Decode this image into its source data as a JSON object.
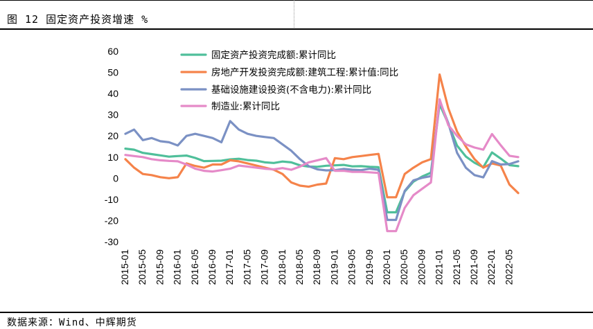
{
  "header": {
    "title": "图 12 固定资产投资增速 %"
  },
  "footer": {
    "source": "数据来源：Wind、中辉期货"
  },
  "chart_data": {
    "type": "line",
    "title": "图 12 固定资产投资增速 %",
    "xlabel": "",
    "ylabel": "",
    "ylim": [
      -30,
      60
    ],
    "yticks": [
      -30,
      -20,
      -10,
      0,
      10,
      20,
      30,
      40,
      50,
      60
    ],
    "grid": false,
    "legend_position": "top-left",
    "x": [
      "2015-01",
      "2015-03",
      "2015-05",
      "2015-07",
      "2015-09",
      "2015-11",
      "2016-01",
      "2016-03",
      "2016-05",
      "2016-07",
      "2016-09",
      "2016-11",
      "2017-01",
      "2017-03",
      "2017-05",
      "2017-07",
      "2017-09",
      "2017-11",
      "2018-01",
      "2018-03",
      "2018-05",
      "2018-07",
      "2018-09",
      "2018-11",
      "2019-01",
      "2019-03",
      "2019-05",
      "2019-07",
      "2019-09",
      "2019-11",
      "2020-01",
      "2020-03",
      "2020-05",
      "2020-07",
      "2020-09",
      "2020-11",
      "2021-01",
      "2021-03",
      "2021-05",
      "2021-07",
      "2021-09",
      "2021-11",
      "2022-01",
      "2022-03",
      "2022-05",
      "2022-07"
    ],
    "x_tick_labels": [
      "2015-01",
      "2015-05",
      "2015-09",
      "2016-01",
      "2016-05",
      "2016-09",
      "2017-01",
      "2017-05",
      "2017-09",
      "2018-01",
      "2018-05",
      "2018-09",
      "2019-01",
      "2019-05",
      "2019-09",
      "2020-01",
      "2020-05",
      "2020-09",
      "2021-01",
      "2021-05",
      "2021-09",
      "2022-01",
      "2022-05"
    ],
    "series": [
      {
        "name": "固定资产投资完成额:累计同比",
        "color": "#4fbf9a",
        "values": [
          14.0,
          13.5,
          12.0,
          11.4,
          10.8,
          10.2,
          10.5,
          10.7,
          9.6,
          8.1,
          8.2,
          8.3,
          8.9,
          9.2,
          8.6,
          8.3,
          7.5,
          7.2,
          7.9,
          7.5,
          6.1,
          5.5,
          5.4,
          5.9,
          6.1,
          6.3,
          5.6,
          5.7,
          5.4,
          5.2,
          -16.1,
          -16.1,
          -6.3,
          -1.6,
          0.8,
          2.6,
          35.0,
          25.6,
          15.4,
          10.3,
          7.3,
          5.2,
          12.2,
          9.3,
          6.2,
          5.7
        ]
      },
      {
        "name": "房地产开发投资完成额:建筑工程:累计值:同比",
        "color": "#f5834a",
        "values": [
          9.0,
          5.0,
          2.0,
          1.5,
          0.5,
          0.0,
          0.5,
          7.0,
          5.8,
          5.0,
          6.5,
          6.5,
          8.5,
          8.0,
          7.0,
          6.0,
          5.0,
          4.0,
          2.0,
          -2.0,
          -3.5,
          -4.0,
          -3.0,
          -2.5,
          9.5,
          9.0,
          10.0,
          10.5,
          11.0,
          11.5,
          -9.0,
          -9.0,
          2.0,
          5.0,
          7.5,
          9.0,
          49.0,
          33.0,
          22.0,
          15.0,
          9.0,
          5.0,
          7.0,
          6.0,
          -3.0,
          -7.0
        ]
      },
      {
        "name": "基础设施建设投资(不含电力):累计同比",
        "color": "#7b91c4",
        "values": [
          21.0,
          23.0,
          18.0,
          19.0,
          17.5,
          17.0,
          15.5,
          20.0,
          21.0,
          20.0,
          19.0,
          17.0,
          27.0,
          23.0,
          21.0,
          20.0,
          19.5,
          19.0,
          16.0,
          13.0,
          9.0,
          5.7,
          4.2,
          3.7,
          3.8,
          4.4,
          4.0,
          3.8,
          4.5,
          4.0,
          -19.7,
          -19.7,
          -6.0,
          -1.0,
          0.2,
          1.0,
          36.6,
          26.0,
          12.0,
          5.0,
          1.5,
          0.4,
          8.1,
          6.5,
          6.7,
          8.0
        ]
      },
      {
        "name": "制造业:累计同比",
        "color": "#e58ac8",
        "values": [
          11.0,
          10.5,
          10.0,
          9.0,
          8.5,
          8.2,
          8.0,
          6.5,
          4.5,
          3.5,
          3.2,
          3.8,
          4.5,
          6.0,
          5.5,
          5.0,
          4.5,
          4.2,
          4.8,
          4.0,
          5.5,
          7.5,
          8.5,
          9.5,
          3.5,
          3.5,
          3.0,
          3.0,
          2.8,
          2.5,
          -25.0,
          -25.0,
          -14.0,
          -8.0,
          -5.0,
          -2.0,
          37.3,
          25.0,
          20.0,
          16.0,
          14.5,
          13.5,
          20.9,
          15.6,
          10.6,
          10.0
        ]
      }
    ]
  }
}
